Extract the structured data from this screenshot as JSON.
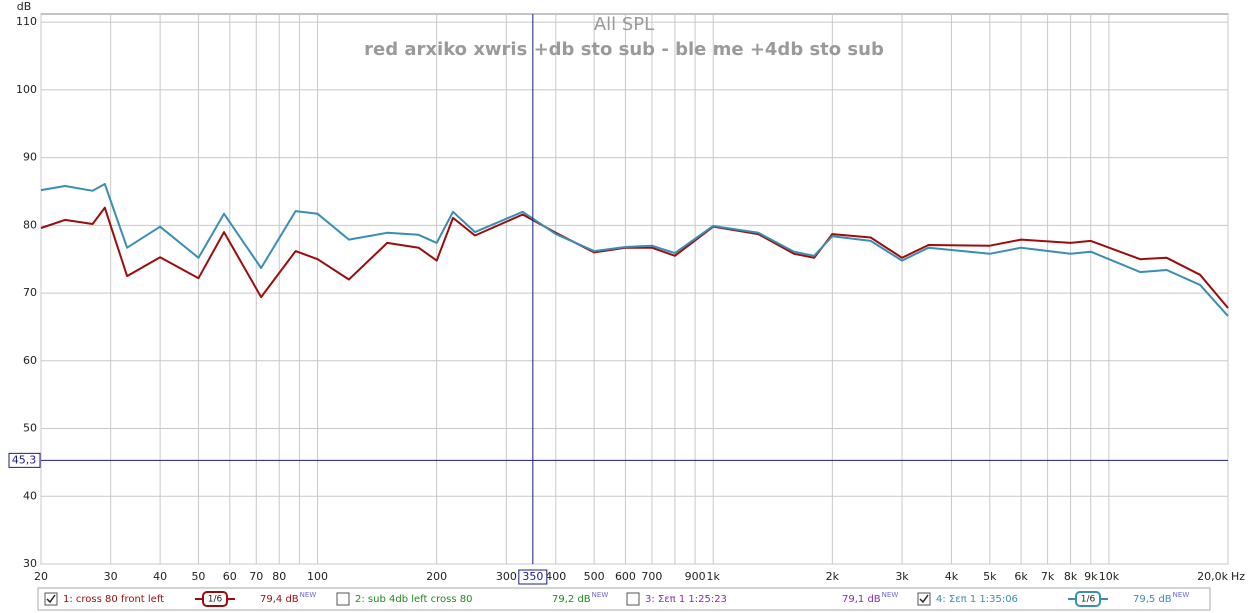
{
  "chart_data": {
    "type": "line",
    "title": "All SPL",
    "subtitle": "red arxiko xwris +db sto sub - ble me +4db sto sub",
    "y_label": "dB",
    "x_label": "Hz",
    "log_x": true,
    "grid": true,
    "x": [
      20,
      23,
      27,
      29,
      33,
      40,
      50,
      58,
      72,
      88,
      100,
      120,
      150,
      180,
      200,
      220,
      250,
      330,
      400,
      500,
      600,
      700,
      800,
      1000,
      1300,
      1600,
      1800,
      2000,
      2500,
      3000,
      3500,
      5000,
      6000,
      8000,
      9000,
      12000,
      14000,
      17000,
      20000
    ],
    "series": [
      {
        "name": "1: cross 80 front left",
        "color": "#9b0d0d",
        "checked": true,
        "smoothing": "1/6",
        "level": "79,4 dB",
        "level_tag": "NEW",
        "values": [
          79.6,
          80.8,
          80.2,
          82.6,
          72.5,
          75.3,
          72.2,
          79.0,
          69.4,
          76.2,
          75.0,
          72.0,
          77.4,
          76.7,
          74.8,
          81.1,
          78.5,
          81.6,
          78.9,
          76.0,
          76.7,
          76.7,
          75.5,
          79.8,
          78.7,
          75.8,
          75.2,
          78.7,
          78.2,
          75.2,
          77.1,
          77.0,
          77.9,
          77.4,
          77.7,
          75.0,
          75.2,
          72.7,
          67.8
        ]
      },
      {
        "name": "4: Σεπ 1 1:35:06",
        "color": "#3a8db3",
        "checked": true,
        "smoothing": "1/6",
        "level": "79,5 dB",
        "level_tag": "NEW",
        "values": [
          85.2,
          85.8,
          85.1,
          86.1,
          76.7,
          79.8,
          75.2,
          81.7,
          73.7,
          82.1,
          81.7,
          77.9,
          78.9,
          78.6,
          77.4,
          82.0,
          79.0,
          82.0,
          78.7,
          76.2,
          76.8,
          77.0,
          75.9,
          79.9,
          78.9,
          76.1,
          75.5,
          78.4,
          77.7,
          74.8,
          76.7,
          75.8,
          76.7,
          75.8,
          76.1,
          73.1,
          73.4,
          71.2,
          66.6
        ]
      }
    ],
    "hidden_traces": [
      {
        "name": "2: sub 4db left cross 80",
        "color": "#1f8a1f",
        "checked": false,
        "level": "79,2 dB",
        "level_tag": "NEW"
      },
      {
        "name": "3: Σεπ 1 1:25:23",
        "color": "#8a2bb0",
        "checked": false,
        "level": "79,1 dB",
        "level_tag": "NEW"
      }
    ],
    "xlim": [
      20,
      20000
    ],
    "ylim": [
      30,
      111.2
    ],
    "yticks": [
      30,
      40,
      50,
      60,
      70,
      80,
      90,
      100,
      110
    ],
    "xticks": [
      20,
      30,
      40,
      50,
      60,
      70,
      80,
      100,
      200,
      300,
      400,
      500,
      600,
      700,
      900,
      {
        "value": 1000,
        "label": "1k"
      },
      {
        "value": 2000,
        "label": "2k"
      },
      {
        "value": 3000,
        "label": "3k"
      },
      {
        "value": 4000,
        "label": "4k"
      },
      {
        "value": 5000,
        "label": "5k"
      },
      {
        "value": 6000,
        "label": "6k"
      },
      {
        "value": 7000,
        "label": "7k"
      },
      {
        "value": 8000,
        "label": "8k"
      },
      {
        "value": 9000,
        "label": "9k"
      },
      {
        "value": 10000,
        "label": "10k"
      },
      {
        "value": 20000,
        "label": "20,0k"
      }
    ],
    "x_minor": [
      90,
      800
    ],
    "cursor_x": 350,
    "cursor_y": {
      "value": 45.3,
      "label": "45,3"
    }
  }
}
